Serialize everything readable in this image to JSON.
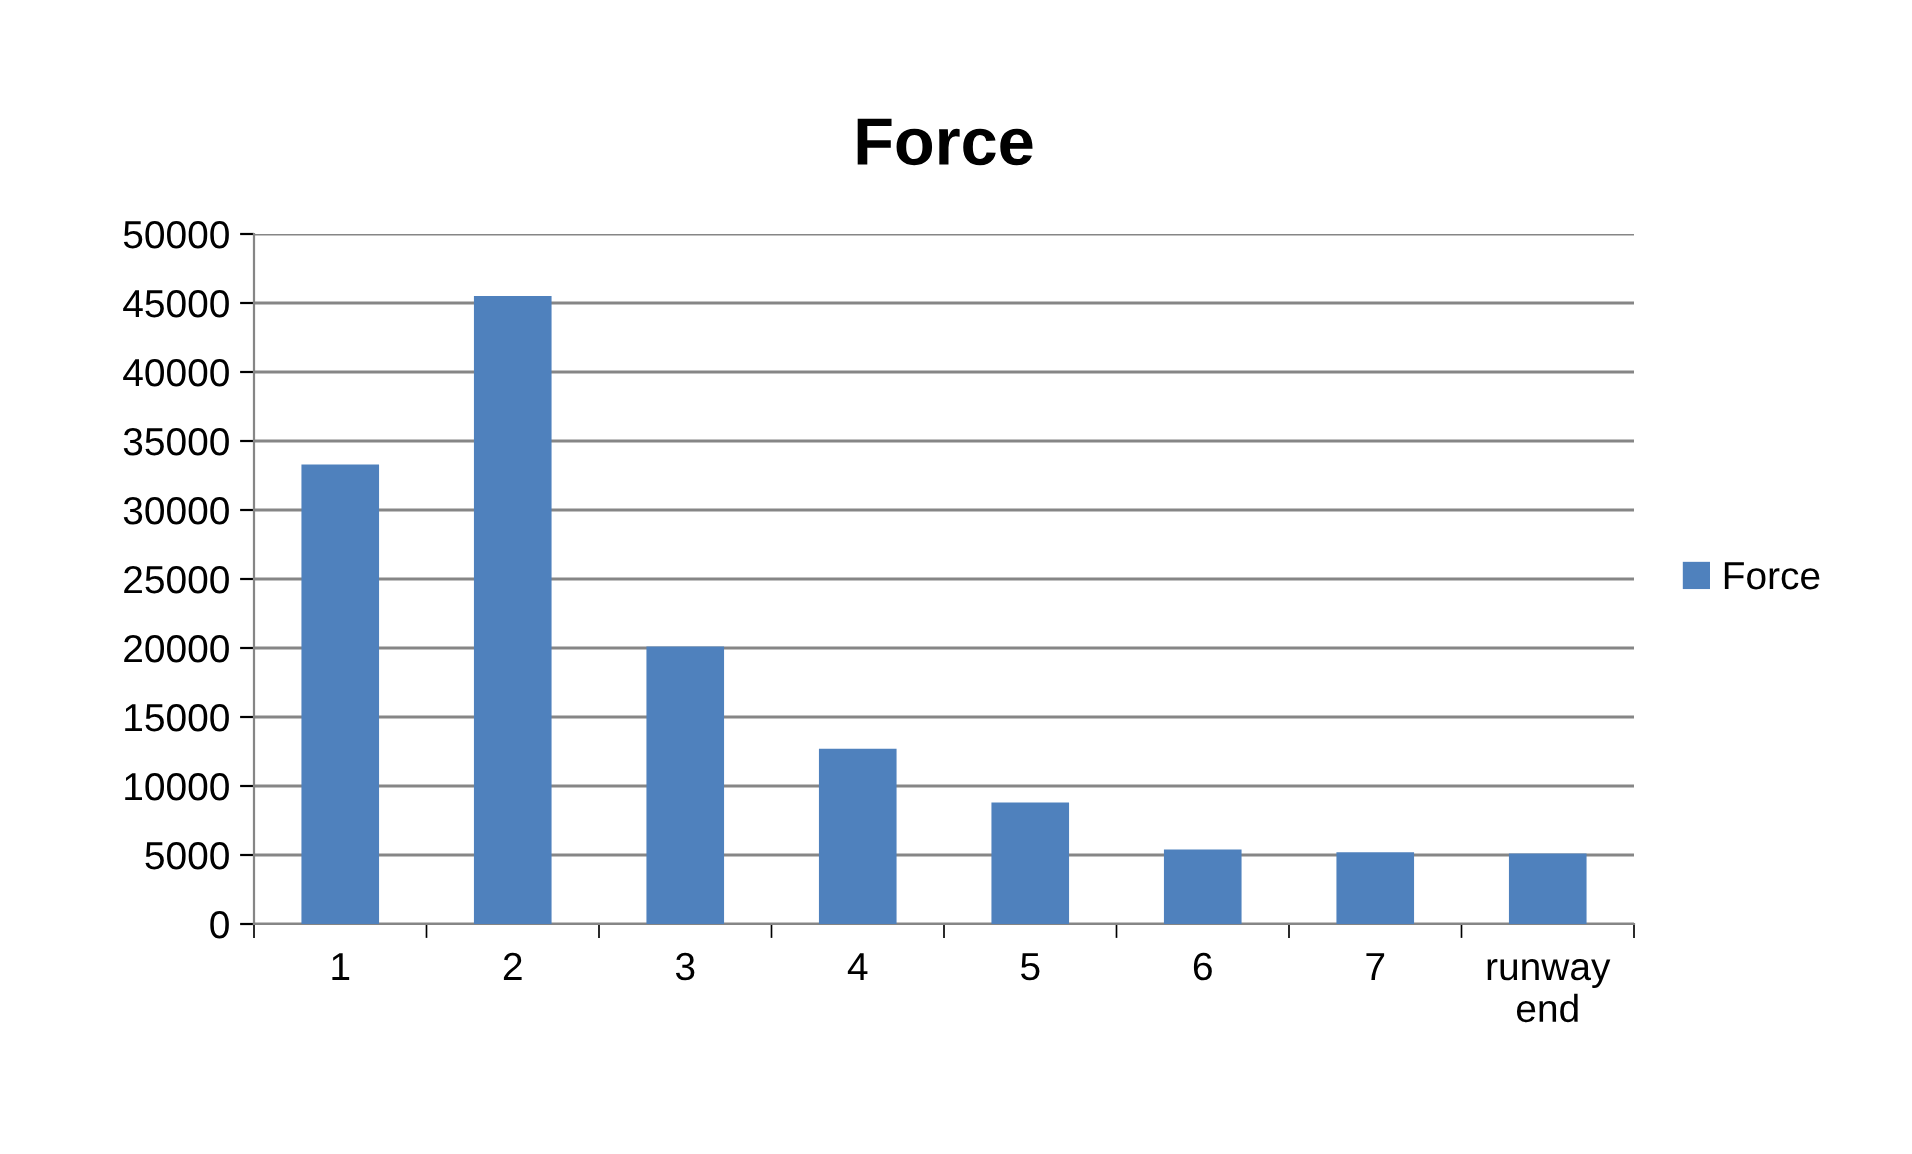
{
  "chart_data": {
    "type": "bar",
    "title": "Force",
    "categories": [
      "1",
      "2",
      "3",
      "4",
      "5",
      "6",
      "7",
      "runway end"
    ],
    "series": [
      {
        "name": "Force",
        "color": "#4f81bd",
        "values": [
          33300,
          45500,
          20100,
          12700,
          8800,
          5400,
          5200,
          5100
        ]
      }
    ],
    "ylim": [
      0,
      50000
    ],
    "yticks": [
      0,
      5000,
      10000,
      15000,
      20000,
      25000,
      30000,
      35000,
      40000,
      45000,
      50000
    ],
    "grid": "y",
    "legend": "right"
  }
}
